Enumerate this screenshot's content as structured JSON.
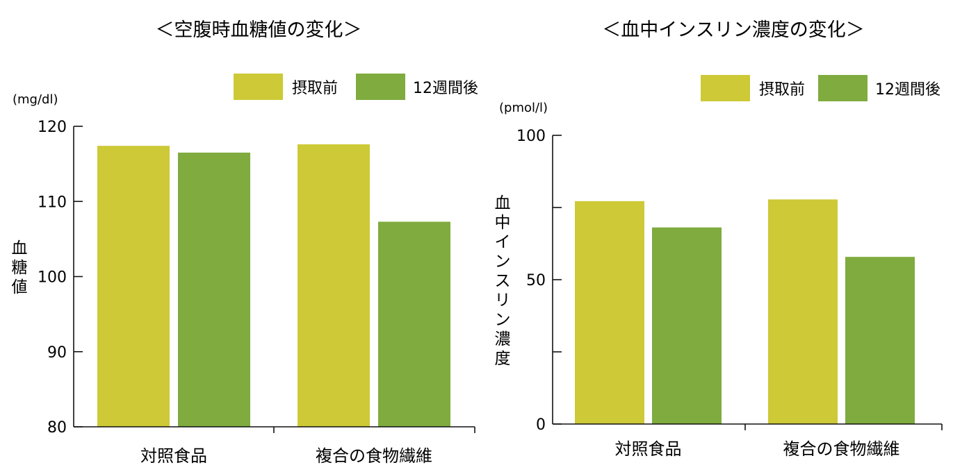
{
  "colors": {
    "before": "#cdc937",
    "after": "#7fab3f"
  },
  "chart_data": [
    {
      "type": "bar",
      "title": "＜空腹時血糖値の変化＞",
      "unit": "(mg/dl)",
      "ylabel": "血糖値",
      "categories": [
        "対照食品",
        "複合の食物繊維"
      ],
      "series": [
        {
          "name": "摂取前",
          "values": [
            117.4,
            117.6
          ]
        },
        {
          "name": "12週間後",
          "values": [
            116.5,
            107.3
          ]
        }
      ],
      "ylim": [
        80,
        120
      ],
      "yticks": [
        "80",
        "90",
        "100",
        "110",
        "120"
      ],
      "legend_position": "top-right",
      "grid": false
    },
    {
      "type": "bar",
      "title": "＜血中インスリン濃度の変化＞",
      "unit": "(pmol/l)",
      "ylabel": "血中インスリン濃度",
      "categories": [
        "対照食品",
        "複合の食物繊維"
      ],
      "series": [
        {
          "name": "摂取前",
          "values": [
            77.2,
            77.8
          ]
        },
        {
          "name": "12週間後",
          "values": [
            68.1,
            57.9
          ]
        }
      ],
      "ylim": [
        0,
        100
      ],
      "yticks": [
        "0",
        "",
        "50",
        "",
        "100"
      ],
      "legend_position": "top-right",
      "grid": false
    }
  ]
}
